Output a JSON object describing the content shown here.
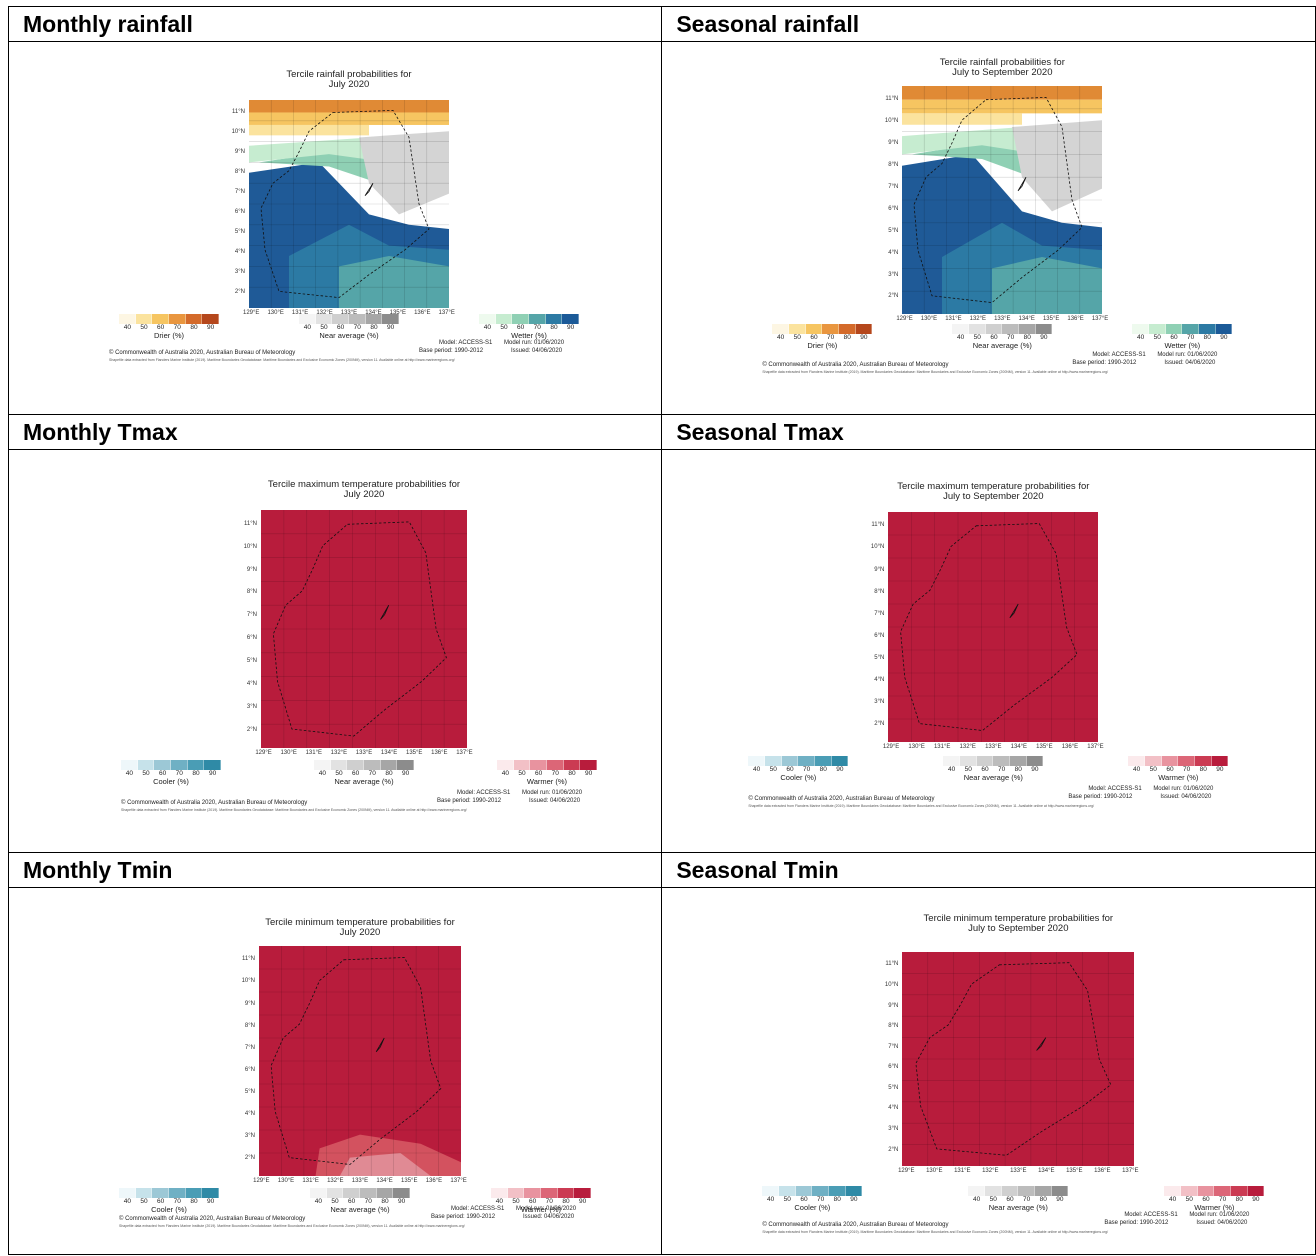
{
  "headers": {
    "monthly_rainfall": "Monthly rainfall",
    "seasonal_rainfall": "Seasonal rainfall",
    "monthly_tmax": "Monthly Tmax",
    "seasonal_tmax": "Seasonal Tmax",
    "monthly_tmin": "Monthly Tmin",
    "seasonal_tmin": "Seasonal Tmin"
  },
  "panels": {
    "p1": {
      "title1": "Tercile rainfall probabilities for",
      "title2": "July 2020",
      "kind": "rain"
    },
    "p2": {
      "title1": "Tercile rainfall probabilities for",
      "title2": "July to September 2020",
      "kind": "rain"
    },
    "p3": {
      "title1": "Tercile maximum temperature probabilities for",
      "title2": "July 2020",
      "kind": "temp"
    },
    "p4": {
      "title1": "Tercile maximum temperature probabilities for",
      "title2": "July to September 2020",
      "kind": "temp"
    },
    "p5": {
      "title1": "Tercile minimum temperature probabilities for",
      "title2": "July 2020",
      "kind": "tmin"
    },
    "p6": {
      "title1": "Tercile minimum temperature probabilities for",
      "title2": "July to September 2020",
      "kind": "temp"
    }
  },
  "lat_labels": [
    "11°N",
    "10°N",
    "9°N",
    "8°N",
    "7°N",
    "6°N",
    "5°N",
    "4°N",
    "3°N",
    "2°N"
  ],
  "lon_labels": [
    "129°E",
    "130°E",
    "131°E",
    "132°E",
    "133°E",
    "134°E",
    "135°E",
    "136°E",
    "137°E"
  ],
  "legend_ticks": [
    "40",
    "50",
    "60",
    "70",
    "80",
    "90"
  ],
  "legend_names": {
    "drier": "Drier (%)",
    "near": "Near average (%)",
    "wetter": "Wetter (%)",
    "cooler": "Cooler (%)",
    "warmer": "Warmer (%)"
  },
  "legend_colors": {
    "drier": [
      "#fdf6e3",
      "#fbe39e",
      "#f6c561",
      "#e9963f",
      "#d46a2a",
      "#b5471c"
    ],
    "near": [
      "#f4f4f4",
      "#e2e2e2",
      "#cfcfcf",
      "#bcbcbc",
      "#a6a6a6",
      "#8c8c8c"
    ],
    "wetter": [
      "#eefaee",
      "#c6ecd0",
      "#8fd0b4",
      "#55a5a8",
      "#2c7aa4",
      "#1b5a98"
    ],
    "cooler": [
      "#eef7fa",
      "#c6e2ea",
      "#9cc8d6",
      "#6fb0c4",
      "#4a9db5",
      "#2f8aa6"
    ],
    "warmer": [
      "#fbeaec",
      "#f2c0c6",
      "#e8939f",
      "#dc6677",
      "#cb3b53",
      "#b81c3c"
    ]
  },
  "colors": {
    "hot": "#b81c3c",
    "rain_dry": "#e08a35",
    "rain_wet": "#1f5a97"
  },
  "credit": "© Commonwealth of Australia 2020, Australian Bureau of Meteorology",
  "fineprint": "Shapefile data extracted from Flanders Marine Institute (2019). Maritime Boundaries Geodatabase: Maritime Boundaries and Exclusive Economic Zones (200NM), version 11. Available online at http://www.marineregions.org/",
  "model": {
    "model": "Model: ACCESS-S1",
    "base": "Base period: 1990-2012",
    "run": "Model run: 01/06/2020",
    "issued": "Issued: 04/06/2020"
  }
}
